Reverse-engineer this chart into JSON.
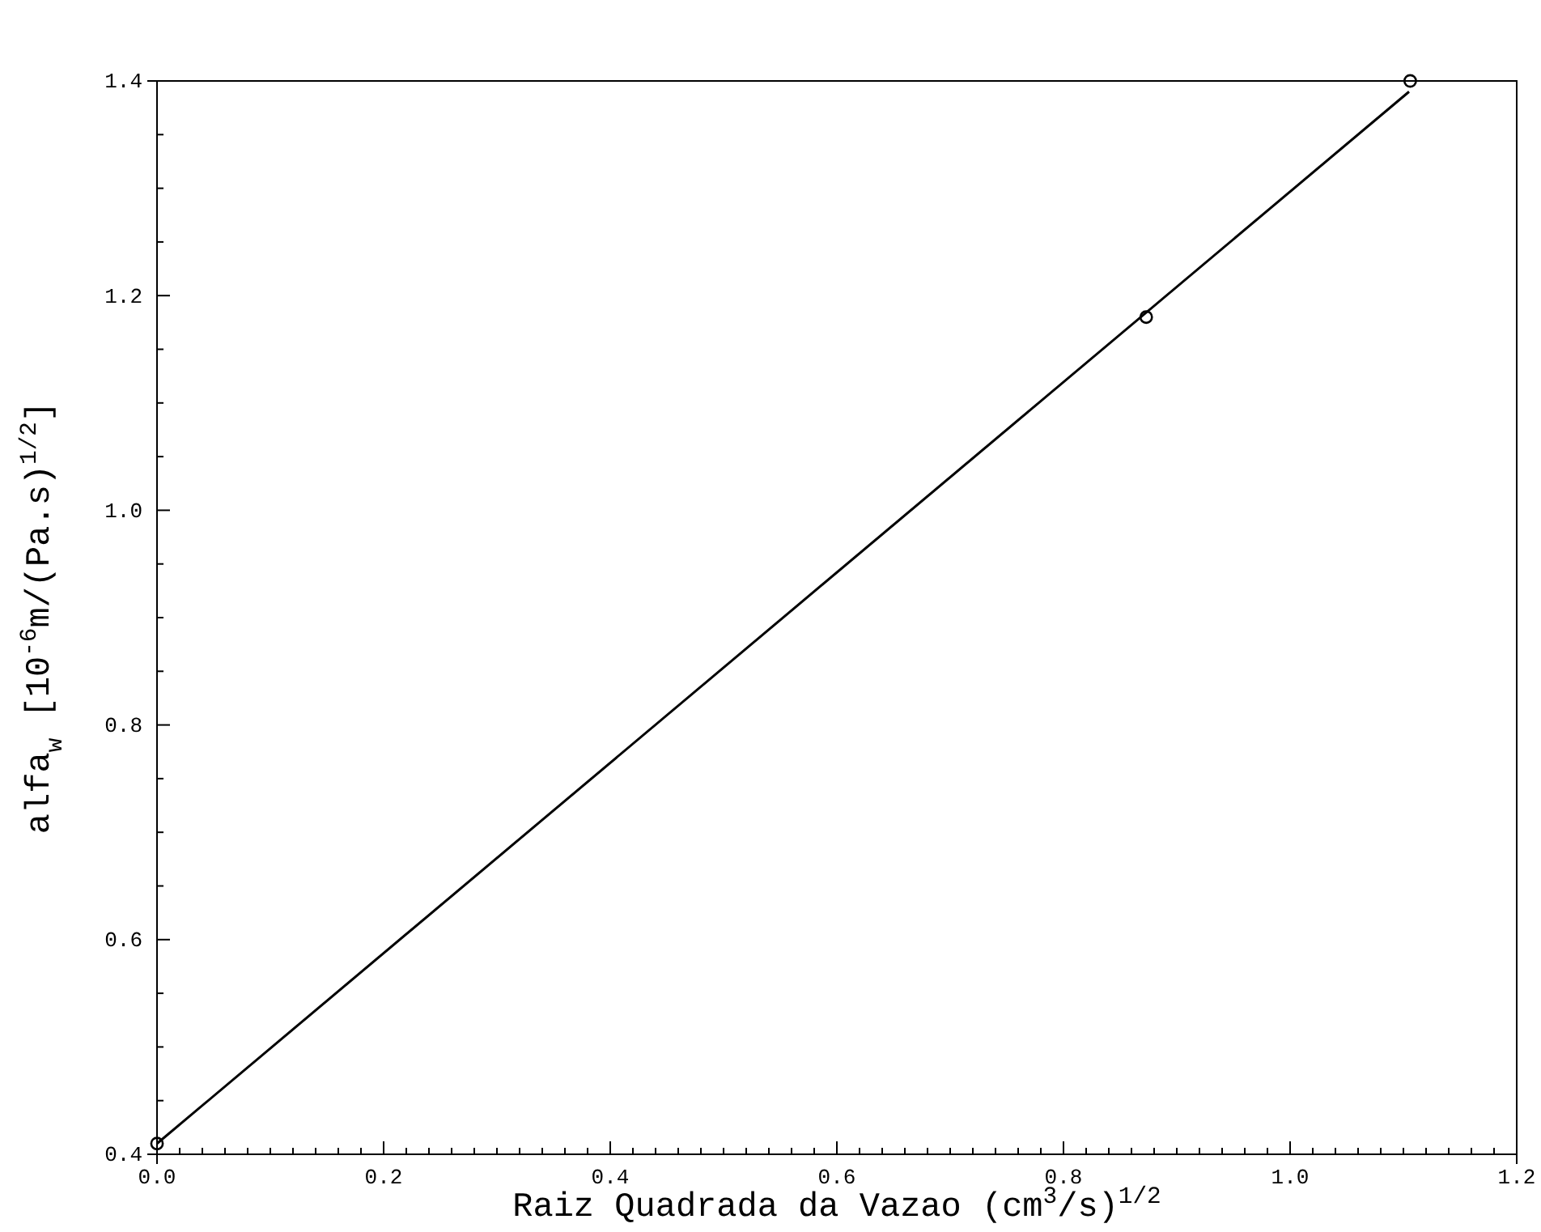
{
  "chart_data": {
    "type": "scatter",
    "xlabel": "Raiz Quadrada da Vazao (cm$^{3}$/s)$^{1/2}$",
    "ylabel": "alfa$_{w}$ [10$^{-6}$m/(Pa.s)$^{1/2}$]",
    "xlim": [
      0,
      1.2
    ],
    "ylim": [
      0.4,
      1.4
    ],
    "xticks": [
      {
        "value": 0,
        "label": "0.0"
      },
      {
        "value": 0.02,
        "label": null
      },
      {
        "value": 0.04,
        "label": null
      },
      {
        "value": 0.06,
        "label": null
      },
      {
        "value": 0.08,
        "label": null
      },
      {
        "value": 0.1,
        "label": null
      },
      {
        "value": 0.12,
        "label": null
      },
      {
        "value": 0.14,
        "label": null
      },
      {
        "value": 0.16,
        "label": null
      },
      {
        "value": 0.18,
        "label": null
      },
      {
        "value": 0.2,
        "label": "0.2"
      },
      {
        "value": 0.22,
        "label": null
      },
      {
        "value": 0.24,
        "label": null
      },
      {
        "value": 0.26,
        "label": null
      },
      {
        "value": 0.28,
        "label": null
      },
      {
        "value": 0.3,
        "label": null
      },
      {
        "value": 0.32,
        "label": null
      },
      {
        "value": 0.34,
        "label": null
      },
      {
        "value": 0.36,
        "label": null
      },
      {
        "value": 0.38,
        "label": null
      },
      {
        "value": 0.4,
        "label": "0.4"
      },
      {
        "value": 0.42,
        "label": null
      },
      {
        "value": 0.44,
        "label": null
      },
      {
        "value": 0.46,
        "label": null
      },
      {
        "value": 0.48,
        "label": null
      },
      {
        "value": 0.5,
        "label": null
      },
      {
        "value": 0.52,
        "label": null
      },
      {
        "value": 0.54,
        "label": null
      },
      {
        "value": 0.56,
        "label": null
      },
      {
        "value": 0.58,
        "label": null
      },
      {
        "value": 0.6,
        "label": "0.6"
      },
      {
        "value": 0.62,
        "label": null
      },
      {
        "value": 0.64,
        "label": null
      },
      {
        "value": 0.66,
        "label": null
      },
      {
        "value": 0.68,
        "label": null
      },
      {
        "value": 0.7,
        "label": null
      },
      {
        "value": 0.72,
        "label": null
      },
      {
        "value": 0.74,
        "label": null
      },
      {
        "value": 0.76,
        "label": null
      },
      {
        "value": 0.78,
        "label": null
      },
      {
        "value": 0.8,
        "label": "0.8"
      },
      {
        "value": 0.82,
        "label": null
      },
      {
        "value": 0.84,
        "label": null
      },
      {
        "value": 0.86,
        "label": null
      },
      {
        "value": 0.88,
        "label": null
      },
      {
        "value": 0.9,
        "label": null
      },
      {
        "value": 0.92,
        "label": null
      },
      {
        "value": 0.94,
        "label": null
      },
      {
        "value": 0.96,
        "label": null
      },
      {
        "value": 0.98,
        "label": null
      },
      {
        "value": 1,
        "label": "1.0"
      },
      {
        "value": 1.02,
        "label": null
      },
      {
        "value": 1.04,
        "label": null
      },
      {
        "value": 1.06,
        "label": null
      },
      {
        "value": 1.08,
        "label": null
      },
      {
        "value": 1.1,
        "label": null
      },
      {
        "value": 1.12,
        "label": null
      },
      {
        "value": 1.14,
        "label": null
      },
      {
        "value": 1.16,
        "label": null
      },
      {
        "value": 1.18,
        "label": null
      },
      {
        "value": 1.2,
        "label": "1.2"
      }
    ],
    "yticks": [
      {
        "value": 0.4,
        "label": "0.4"
      },
      {
        "value": 0.45,
        "label": null
      },
      {
        "value": 0.5,
        "label": null
      },
      {
        "value": 0.55,
        "label": null
      },
      {
        "value": 0.6,
        "label": "0.6"
      },
      {
        "value": 0.65,
        "label": null
      },
      {
        "value": 0.7,
        "label": null
      },
      {
        "value": 0.75,
        "label": null
      },
      {
        "value": 0.8,
        "label": "0.8"
      },
      {
        "value": 0.85,
        "label": null
      },
      {
        "value": 0.9,
        "label": null
      },
      {
        "value": 0.95,
        "label": null
      },
      {
        "value": 1,
        "label": "1.0"
      },
      {
        "value": 1.05,
        "label": null
      },
      {
        "value": 1.1,
        "label": null
      },
      {
        "value": 1.15,
        "label": null
      },
      {
        "value": 1.2,
        "label": "1.2"
      },
      {
        "value": 1.25,
        "label": null
      },
      {
        "value": 1.3,
        "label": null
      },
      {
        "value": 1.35,
        "label": null
      },
      {
        "value": 1.4,
        "label": "1.4"
      }
    ],
    "grid": false,
    "marker": "circle",
    "series": [
      {
        "color": "#000000",
        "x": [
          0,
          0.873,
          1.106
        ],
        "values": [
          0.41,
          1.18,
          1.4
        ]
      },
      {
        "type": "line",
        "color": "#000000",
        "marker": "none",
        "line_style": "solid",
        "x": [
          0,
          1.105
        ],
        "values": [
          0.41,
          1.39
        ]
      }
    ]
  }
}
